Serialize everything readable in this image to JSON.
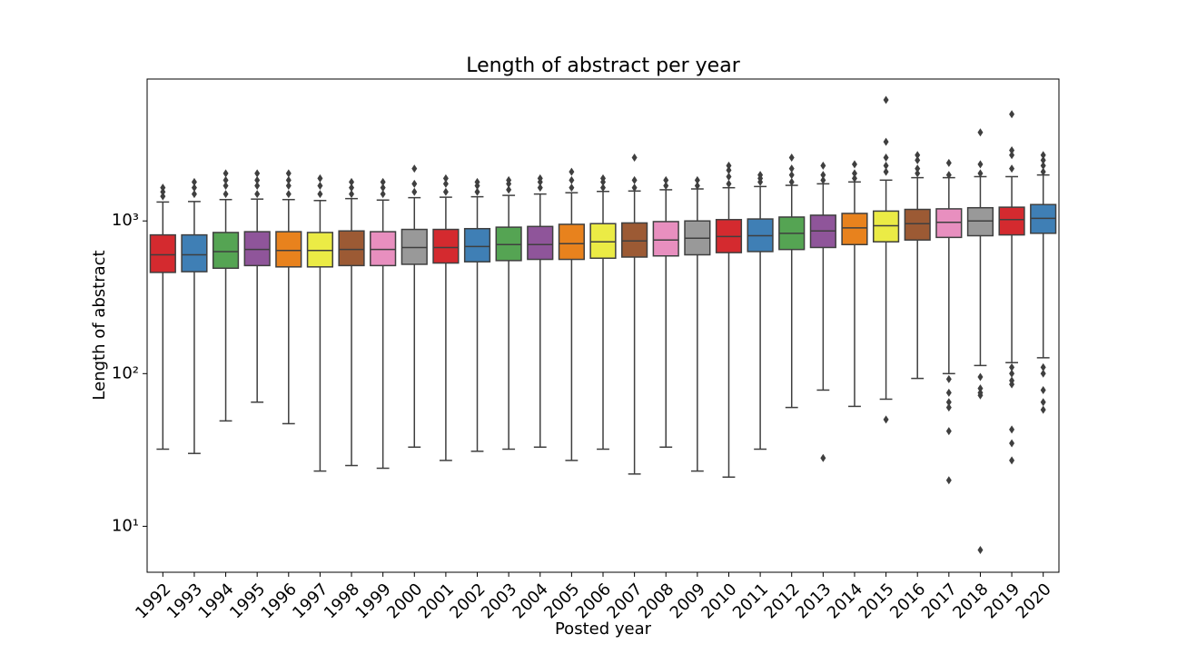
{
  "chart_data": {
    "type": "box",
    "title": "Length of abstract per year",
    "x_label": "Posted year",
    "y_label": "Length of abstract",
    "log_scale_y": true,
    "ylim": [
      5,
      8500
    ],
    "yticks": [
      {
        "value": 10,
        "label": "10¹"
      },
      {
        "value": 100,
        "label": "10²"
      },
      {
        "value": 1000,
        "label": "10³"
      }
    ],
    "categories": [
      "1992",
      "1993",
      "1994",
      "1995",
      "1996",
      "1997",
      "1998",
      "1999",
      "2000",
      "2001",
      "2002",
      "2003",
      "2004",
      "2005",
      "2006",
      "2007",
      "2008",
      "2009",
      "2010",
      "2011",
      "2012",
      "2013",
      "2014",
      "2015",
      "2016",
      "2017",
      "2018",
      "2019",
      "2020"
    ],
    "colors": [
      "#d42a2f",
      "#3f7fb5",
      "#55a453",
      "#8f559a",
      "#e8821d",
      "#ebeb45",
      "#9c5a34",
      "#e88fbf",
      "#999999",
      "#d42a2f",
      "#3f7fb5",
      "#55a453",
      "#8f559a",
      "#e8821d",
      "#ebeb45",
      "#9c5a34",
      "#e88fbf",
      "#999999",
      "#d42a2f",
      "#3f7fb5",
      "#55a453",
      "#8f559a",
      "#e8821d",
      "#ebeb45",
      "#9c5a34",
      "#e88fbf",
      "#999999",
      "#d42a2f",
      "#3f7fb5"
    ],
    "whisker_low": [
      32,
      30,
      49,
      65,
      47,
      23,
      25,
      24,
      33,
      27,
      31,
      32,
      33,
      27,
      32,
      22,
      33,
      23,
      21,
      32,
      60,
      78,
      61,
      68,
      93,
      100,
      113,
      118,
      127
    ],
    "q1": [
      460,
      465,
      490,
      510,
      500,
      500,
      510,
      510,
      520,
      530,
      540,
      550,
      560,
      560,
      570,
      580,
      590,
      600,
      620,
      630,
      650,
      670,
      700,
      730,
      750,
      780,
      800,
      810,
      830
    ],
    "median": [
      600,
      600,
      630,
      650,
      640,
      640,
      650,
      650,
      670,
      670,
      680,
      700,
      700,
      710,
      730,
      740,
      750,
      770,
      790,
      800,
      830,
      860,
      900,
      930,
      960,
      980,
      1000,
      1020,
      1040
    ],
    "q3": [
      810,
      810,
      840,
      850,
      850,
      840,
      860,
      850,
      880,
      880,
      890,
      910,
      920,
      950,
      960,
      970,
      990,
      1000,
      1020,
      1030,
      1060,
      1090,
      1120,
      1160,
      1190,
      1200,
      1220,
      1230,
      1280
    ],
    "whisker_high": [
      1330,
      1340,
      1380,
      1390,
      1380,
      1360,
      1400,
      1370,
      1420,
      1430,
      1440,
      1470,
      1500,
      1530,
      1560,
      1570,
      1600,
      1620,
      1650,
      1680,
      1710,
      1750,
      1800,
      1850,
      1920,
      1920,
      1950,
      1950,
      2000
    ],
    "outliers": [
      [
        1450,
        1550,
        1650
      ],
      [
        1500,
        1650,
        1800
      ],
      [
        1500,
        1700,
        1850,
        2050
      ],
      [
        1500,
        1700,
        1850,
        2050
      ],
      [
        1500,
        1700,
        1850,
        2050
      ],
      [
        1500,
        1700,
        1900
      ],
      [
        1500,
        1650,
        1800
      ],
      [
        1500,
        1650,
        1800
      ],
      [
        1550,
        1750,
        2200
      ],
      [
        1550,
        1750,
        1900
      ],
      [
        1550,
        1700,
        1800
      ],
      [
        1600,
        1750,
        1850
      ],
      [
        1650,
        1800,
        1900
      ],
      [
        1650,
        1850,
        2100
      ],
      [
        1650,
        1800,
        1900
      ],
      [
        1650,
        1850,
        2600
      ],
      [
        1700,
        1850
      ],
      [
        1700,
        1850
      ],
      [
        1750,
        1950,
        2150,
        2300
      ],
      [
        1800,
        1900,
        2000
      ],
      [
        1800,
        2000,
        2200,
        2600
      ],
      [
        1850,
        2000,
        2300,
        28
      ],
      [
        1900,
        2050,
        2350
      ],
      [
        2100,
        2300,
        2600,
        3300,
        6200,
        50
      ],
      [
        2050,
        2200,
        2500,
        2700
      ],
      [
        2000,
        2400,
        92,
        75,
        65,
        60,
        42,
        20
      ],
      [
        2050,
        2350,
        3800,
        95,
        80,
        75,
        72,
        7
      ],
      [
        2200,
        2700,
        2900,
        5000,
        110,
        100,
        90,
        85,
        43,
        35,
        27
      ],
      [
        2100,
        2300,
        2500,
        2700,
        110,
        100,
        78,
        65,
        58
      ]
    ]
  }
}
